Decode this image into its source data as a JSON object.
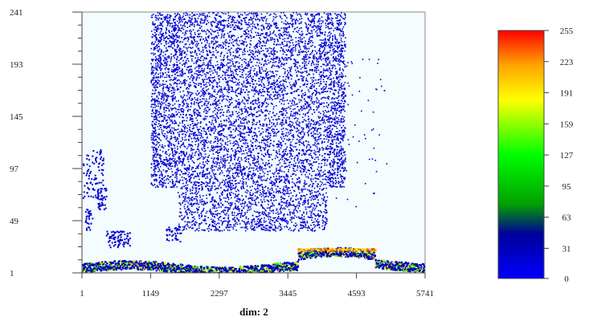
{
  "chart_data": {
    "type": "heatmap",
    "title": "",
    "xlabel": "dim: 2",
    "ylabel": "",
    "x_ticks": [
      1,
      1149,
      2297,
      3445,
      4593,
      5741
    ],
    "y_ticks": [
      1,
      49,
      97,
      145,
      193,
      241
    ],
    "xlim": [
      1,
      5741
    ],
    "ylim": [
      1,
      241
    ],
    "background_color": "#f4fcfe",
    "colorbar": {
      "min": 0,
      "max": 255,
      "ticks": [
        0,
        31,
        63,
        95,
        127,
        159,
        191,
        223,
        255
      ],
      "colors": [
        "#0000ff",
        "#00009a",
        "#00a000",
        "#00ff00",
        "#ffff00",
        "#ffa500",
        "#ff0000"
      ]
    },
    "regions": [
      {
        "description": "dense blue scatter",
        "x_range": [
          1149,
          4400
        ],
        "y_range": [
          40,
          241
        ],
        "value": 20
      },
      {
        "description": "bright trace along bottom",
        "x_range": [
          1,
          5741
        ],
        "y_range": [
          1,
          20
        ],
        "value": 100
      },
      {
        "description": "trace segment",
        "x_range": [
          3600,
          4900
        ],
        "y_range": [
          20,
          26
        ],
        "value": 180
      },
      {
        "description": "left cluster",
        "x_range": [
          1,
          350
        ],
        "y_range": [
          70,
          115
        ],
        "value": 20
      },
      {
        "description": "small cluster",
        "x_range": [
          400,
          800
        ],
        "y_range": [
          25,
          40
        ],
        "value": 20
      }
    ]
  }
}
